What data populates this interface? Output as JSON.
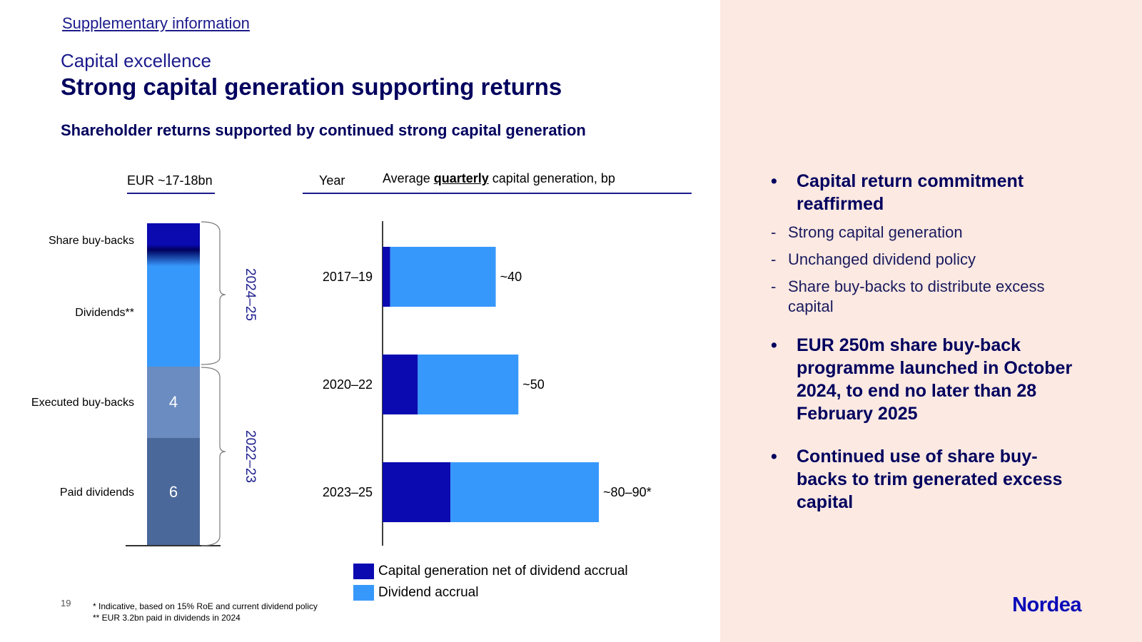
{
  "header": {
    "supplementary": "Supplementary information",
    "subtitle": "Capital excellence",
    "title": "Strong capital generation supporting returns",
    "section": "Shareholder returns supported by continued strong capital generation"
  },
  "stack_header": "EUR ~17-18bn",
  "year_header": "Year",
  "avg_header": {
    "prefix": "Average ",
    "emph": "quarterly",
    "suffix": " capital generation, bp"
  },
  "brackets": [
    "2024–25",
    "2022–23"
  ],
  "chart_data": [
    {
      "type": "bar",
      "orientation": "vertical-stacked",
      "title": "EUR ~17-18bn",
      "segments": [
        {
          "label": "Share buy-backs",
          "color": "#0a0ab0",
          "value_label": ""
        },
        {
          "label": "Dividends**",
          "color": "#3798fb",
          "value_label": ""
        },
        {
          "label": "Executed buy-backs",
          "color": "#6a8cc0",
          "value_label": "4",
          "value": 4
        },
        {
          "label": "Paid dividends",
          "color": "#4a6899",
          "value_label": "6",
          "value": 6
        }
      ]
    },
    {
      "type": "bar",
      "orientation": "horizontal-stacked",
      "title": "Average quarterly capital generation, bp",
      "categories": [
        "2017–19",
        "2020–22",
        "2023–25"
      ],
      "series": [
        {
          "name": "Capital generation net of dividend accrual",
          "color": "#0a0ab0",
          "values": [
            3,
            14,
            27
          ]
        },
        {
          "name": "Dividend accrual",
          "color": "#3798fb",
          "values": [
            42,
            40,
            59
          ]
        }
      ],
      "data_labels": [
        "~40",
        "~50",
        "~80–90*"
      ],
      "xlim": [
        0,
        105
      ]
    }
  ],
  "legend": [
    {
      "label": "Capital generation net of dividend accrual",
      "color": "#0a0ab0"
    },
    {
      "label": "Dividend accrual",
      "color": "#3798fb"
    }
  ],
  "footnotes": [
    "* Indicative, based on 15% RoE and current dividend policy",
    "** EUR 3.2bn paid in dividends in 2024"
  ],
  "page_number": "19",
  "bullets": {
    "b1": "Capital return commitment reaffirmed",
    "b1_subs": [
      "Strong capital generation",
      "Unchanged dividend policy",
      "Share buy-backs to distribute excess capital"
    ],
    "b2": "EUR 250m share buy-back programme launched in October 2024, to end no later than 28 February 2025",
    "b3": "Continued use of share buy-backs to trim generated excess capital",
    "bullet_symbol": "•",
    "dash_symbol": "-"
  },
  "logo": "Nordea"
}
